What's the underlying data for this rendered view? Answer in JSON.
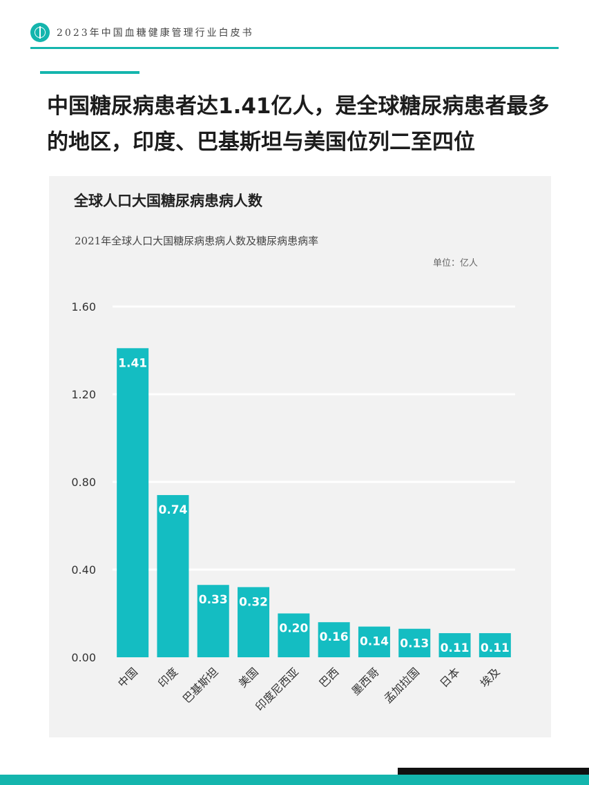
{
  "header": {
    "title": "2023年中国血糖健康管理行业白皮书"
  },
  "headline": "中国糖尿病患者达1.41亿人，是全球糖尿病患者最多的地区，印度、巴基斯坦与美国位列二至四位",
  "chart": {
    "title": "全球人口大国糖尿病患病人数"
  },
  "colors": {
    "accent": "#14b5ad",
    "bar": "#14bdc2",
    "panel": "#f2f2f2"
  },
  "chart_data": {
    "type": "bar",
    "title": "全球人口大国糖尿病患病人数",
    "subtitle": "2021年全球人口大国糖尿病患病人数及糖尿病患病率",
    "unit": "单位：亿人",
    "categories": [
      "中国",
      "印度",
      "巴基斯坦",
      "美国",
      "印度尼西亚",
      "巴西",
      "墨西哥",
      "孟加拉国",
      "日本",
      "埃及"
    ],
    "values": [
      1.41,
      0.74,
      0.33,
      0.32,
      0.2,
      0.16,
      0.14,
      0.13,
      0.11,
      0.11
    ],
    "value_labels": [
      "1.41",
      "0.74",
      "0.33",
      "0.32",
      "0.20",
      "0.16",
      "0.14",
      "0.13",
      "0.11",
      "0.11"
    ],
    "yticks": [
      "0.00",
      "0.40",
      "0.80",
      "1.20",
      "1.60"
    ],
    "ylim": [
      0,
      1.6
    ],
    "grid": true,
    "xlabel": "",
    "ylabel": ""
  }
}
